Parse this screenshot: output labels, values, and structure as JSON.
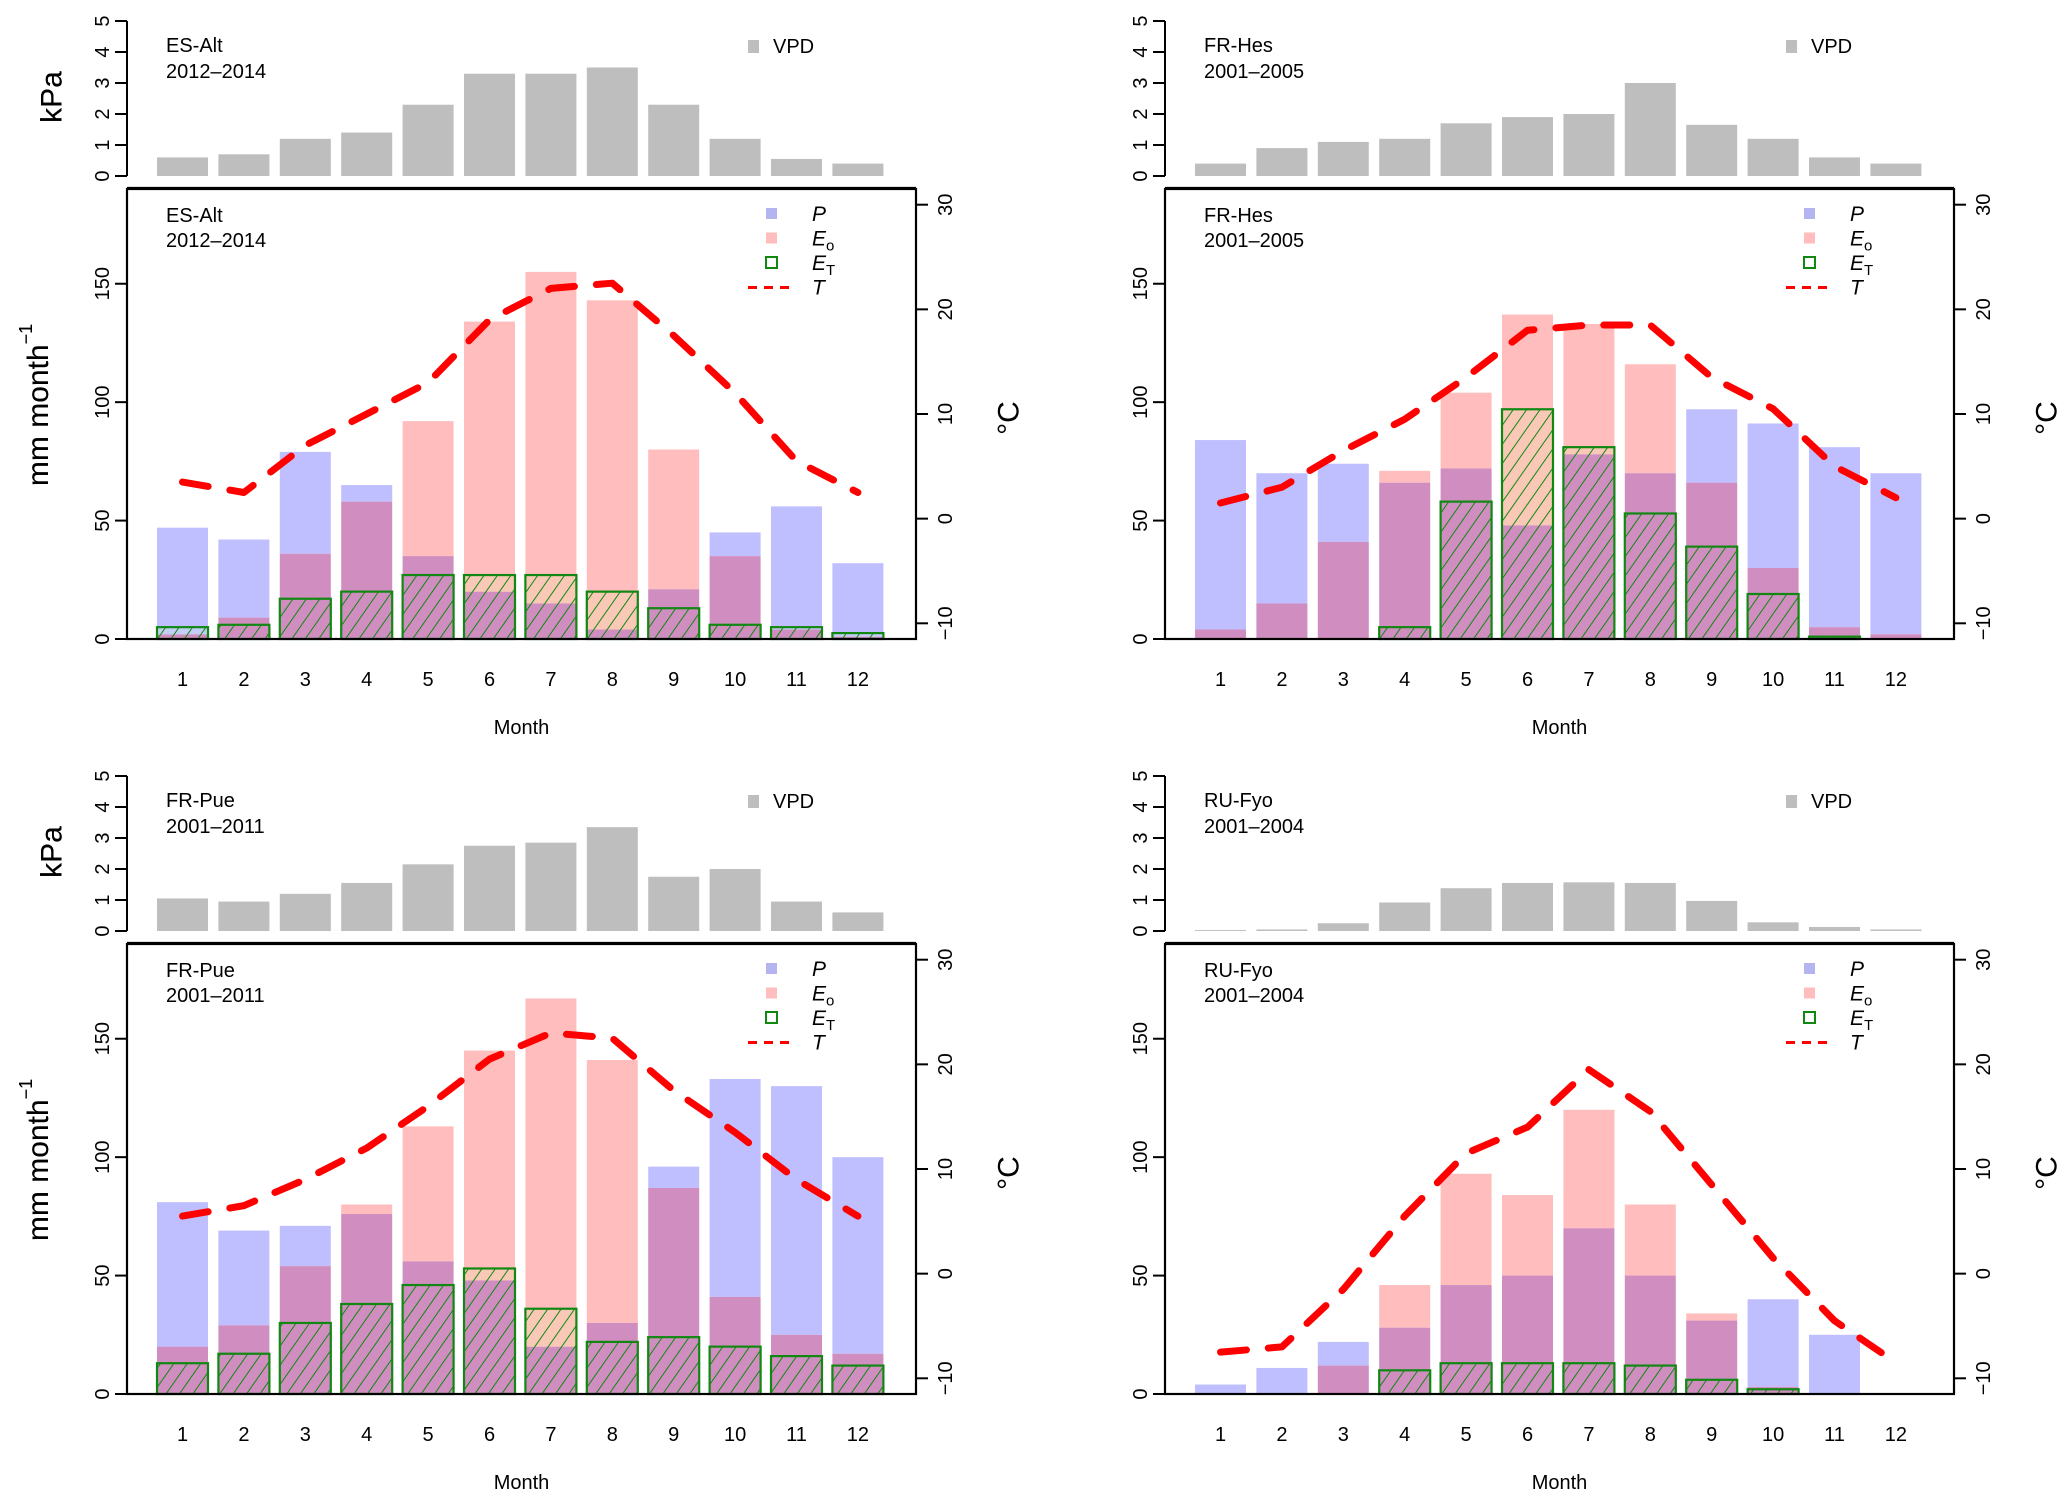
{
  "chart_data": [
    {
      "type": "bar",
      "site": "ES-Alt",
      "period": "2012–2014",
      "categories": [
        "1",
        "2",
        "3",
        "4",
        "5",
        "6",
        "7",
        "8",
        "9",
        "10",
        "11",
        "12"
      ],
      "xlabel": "Month",
      "vpd": {
        "ylabel": "kPa",
        "ylim": [
          0,
          5
        ],
        "yticks": [
          "0",
          "1",
          "2",
          "3",
          "4",
          "5"
        ],
        "legend": "VPD",
        "values": [
          0.6,
          0.7,
          1.2,
          1.4,
          2.3,
          3.3,
          3.3,
          3.5,
          2.3,
          1.2,
          0.55,
          0.4
        ]
      },
      "main": {
        "ylabel": "mm month",
        "ylabel_sup": "−1",
        "ylim": [
          0,
          190
        ],
        "yticks": [
          "0",
          "50",
          "100",
          "150"
        ],
        "y2label": "°C",
        "y2lim": [
          -11.5,
          31.5
        ],
        "y2ticks": [
          "−10",
          "0",
          "10",
          "20",
          "30"
        ],
        "series": [
          {
            "name": "P",
            "values": [
              47,
              42,
              79,
              65,
              35,
              20,
              15,
              4,
              21,
              45,
              56,
              32
            ]
          },
          {
            "name": "Eo",
            "values": [
              2,
              9,
              36,
              58,
              92,
              134,
              155,
              143,
              80,
              35,
              4,
              1
            ]
          },
          {
            "name": "ET",
            "values": [
              5,
              6,
              17,
              20,
              27,
              27,
              27,
              20,
              13,
              6,
              5,
              2.5
            ]
          },
          {
            "name": "T",
            "axis": "right",
            "values": [
              3.5,
              2.5,
              7,
              10,
              13,
              19,
              22,
              22.5,
              17.5,
              12,
              5.5,
              2.5
            ]
          }
        ]
      }
    },
    {
      "type": "bar",
      "site": "FR-Hes",
      "period": "2001–2005",
      "categories": [
        "1",
        "2",
        "3",
        "4",
        "5",
        "6",
        "7",
        "8",
        "9",
        "10",
        "11",
        "12"
      ],
      "xlabel": "Month",
      "vpd": {
        "ylabel": "kPa",
        "ylim": [
          0,
          5
        ],
        "yticks": [
          "0",
          "1",
          "2",
          "3",
          "4",
          "5"
        ],
        "legend": "VPD",
        "values": [
          0.4,
          0.9,
          1.1,
          1.2,
          1.7,
          1.9,
          2.0,
          3.0,
          1.65,
          1.2,
          0.6,
          0.4
        ]
      },
      "main": {
        "ylabel": "mm month",
        "ylabel_sup": "−1",
        "ylim": [
          0,
          190
        ],
        "yticks": [
          "0",
          "50",
          "100",
          "150"
        ],
        "y2label": "°C",
        "y2lim": [
          -11.5,
          31.5
        ],
        "y2ticks": [
          "−10",
          "0",
          "10",
          "20",
          "30"
        ],
        "series": [
          {
            "name": "P",
            "values": [
              84,
              70,
              74,
              66,
              72,
              48,
              78,
              70,
              97,
              91,
              81,
              70
            ]
          },
          {
            "name": "Eo",
            "values": [
              4,
              15,
              41,
              71,
              104,
              137,
              133,
              116,
              66,
              30,
              5,
              2
            ]
          },
          {
            "name": "ET",
            "values": [
              0,
              0,
              0,
              5,
              58,
              97,
              81,
              53,
              39,
              19,
              1,
              0
            ]
          },
          {
            "name": "T",
            "axis": "right",
            "values": [
              1.5,
              3,
              6.5,
              9.5,
              13.5,
              18,
              18.5,
              18.5,
              13.5,
              10.5,
              5,
              2
            ]
          }
        ]
      }
    },
    {
      "type": "bar",
      "site": "FR-Pue",
      "period": "2001–2011",
      "categories": [
        "1",
        "2",
        "3",
        "4",
        "5",
        "6",
        "7",
        "8",
        "9",
        "10",
        "11",
        "12"
      ],
      "xlabel": "Month",
      "vpd": {
        "ylabel": "kPa",
        "ylim": [
          0,
          5
        ],
        "yticks": [
          "0",
          "1",
          "2",
          "3",
          "4",
          "5"
        ],
        "legend": "VPD",
        "values": [
          1.05,
          0.95,
          1.2,
          1.55,
          2.15,
          2.75,
          2.85,
          3.35,
          1.75,
          2.0,
          0.95,
          0.6
        ]
      },
      "main": {
        "ylabel": "mm month",
        "ylabel_sup": "−1",
        "ylim": [
          0,
          190
        ],
        "yticks": [
          "0",
          "50",
          "100",
          "150"
        ],
        "y2label": "°C",
        "y2lim": [
          -11.5,
          31.5
        ],
        "y2ticks": [
          "−10",
          "0",
          "10",
          "20",
          "30"
        ],
        "series": [
          {
            "name": "P",
            "values": [
              81,
              69,
              71,
              76,
              56,
              48,
              20,
              30,
              96,
              133,
              130,
              100
            ]
          },
          {
            "name": "Eo",
            "values": [
              20,
              29,
              54,
              80,
              113,
              145,
              167,
              141,
              87,
              41,
              25,
              17
            ]
          },
          {
            "name": "ET",
            "values": [
              13,
              17,
              30,
              38,
              46,
              53,
              36,
              22,
              24,
              20,
              16,
              12
            ]
          },
          {
            "name": "T",
            "axis": "right",
            "values": [
              5.5,
              6.5,
              9,
              12,
              16,
              20.5,
              23,
              22.5,
              17.5,
              13.5,
              9,
              5.5
            ]
          }
        ]
      }
    },
    {
      "type": "bar",
      "site": "RU-Fyo",
      "period": "2001–2004",
      "categories": [
        "1",
        "2",
        "3",
        "4",
        "5",
        "6",
        "7",
        "8",
        "9",
        "10",
        "11",
        "12"
      ],
      "xlabel": "Month",
      "vpd": {
        "ylabel": "kPa",
        "ylim": [
          0,
          5
        ],
        "yticks": [
          "0",
          "1",
          "2",
          "3",
          "4",
          "5"
        ],
        "legend": "VPD",
        "values": [
          0.03,
          0.05,
          0.25,
          0.92,
          1.38,
          1.55,
          1.57,
          1.55,
          0.97,
          0.28,
          0.13,
          0.05
        ]
      },
      "main": {
        "ylabel": "mm month",
        "ylabel_sup": "−1",
        "ylim": [
          0,
          190
        ],
        "yticks": [
          "0",
          "50",
          "100",
          "150"
        ],
        "y2label": "°C",
        "y2lim": [
          -11.5,
          31.5
        ],
        "y2ticks": [
          "−10",
          "0",
          "10",
          "20",
          "30"
        ],
        "series": [
          {
            "name": "P",
            "values": [
              4,
              11,
              22,
              28,
              46,
              50,
              70,
              50,
              31,
              40,
              25,
              0
            ]
          },
          {
            "name": "Eo",
            "values": [
              0,
              0,
              12,
              46,
              93,
              84,
              120,
              80,
              34,
              3,
              0,
              0
            ]
          },
          {
            "name": "ET",
            "values": [
              0,
              0,
              0,
              10,
              13,
              13,
              13,
              12,
              6,
              2,
              0,
              0
            ]
          },
          {
            "name": "T",
            "axis": "right",
            "values": [
              -7.5,
              -7,
              -1.5,
              5.5,
              11.5,
              14,
              19.5,
              15.5,
              8.5,
              1.5,
              -4.5,
              -8.5
            ]
          }
        ]
      }
    }
  ],
  "legend": {
    "items": [
      {
        "key": "P",
        "label": "P",
        "sub": ""
      },
      {
        "key": "Eo",
        "label": "E",
        "sub": "o"
      },
      {
        "key": "ET",
        "label": "E",
        "sub": "T"
      },
      {
        "key": "T",
        "label": "T",
        "sub": ""
      }
    ]
  },
  "colors": {
    "vpd": "#bebebe",
    "P": "#bfbfff",
    "Eo": "#ffbdbd",
    "overlap": "#cf8dc0",
    "ET_border": "#118811",
    "ET_over_Eo": "#f9c8b6",
    "ET_over_P": "#c4cdf6",
    "T": "#ff0000",
    "axis": "#000000"
  }
}
